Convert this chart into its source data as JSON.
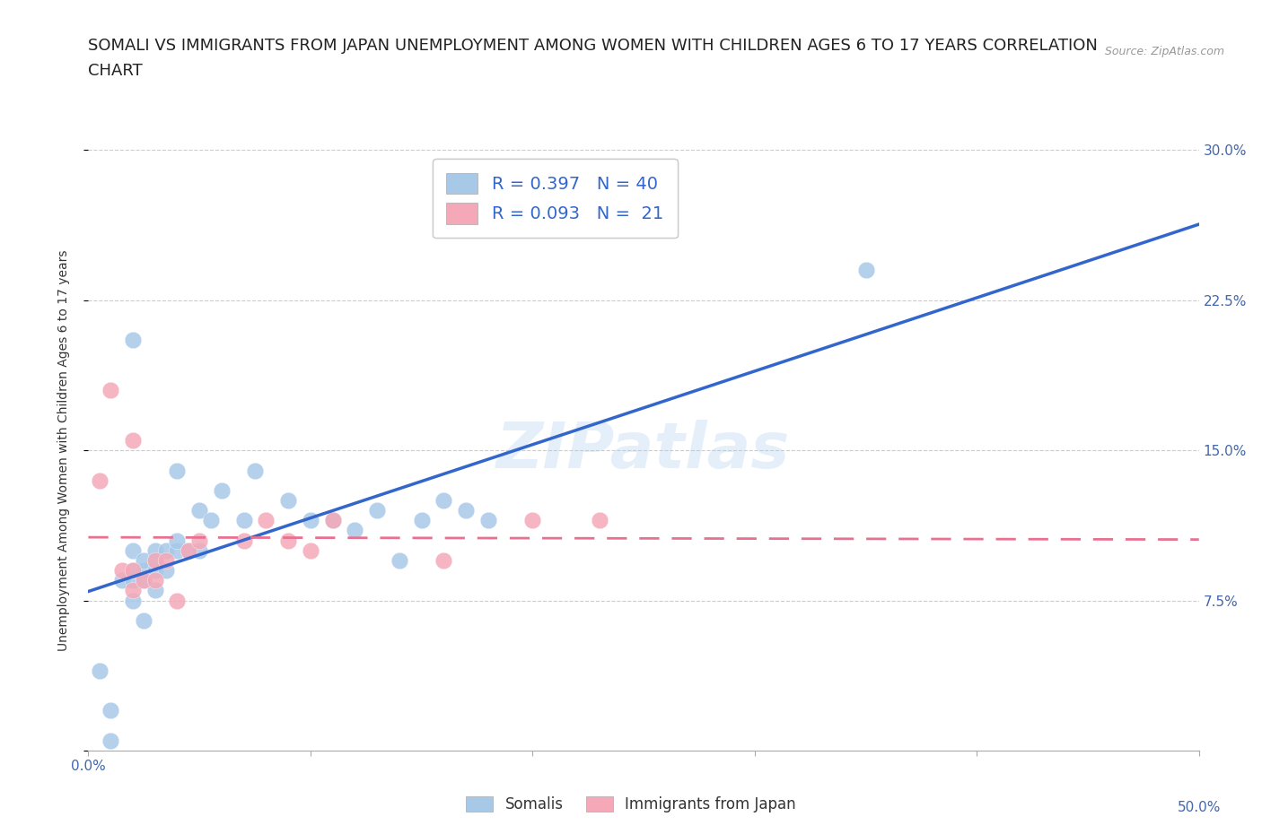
{
  "title_line1": "SOMALI VS IMMIGRANTS FROM JAPAN UNEMPLOYMENT AMONG WOMEN WITH CHILDREN AGES 6 TO 17 YEARS CORRELATION",
  "title_line2": "CHART",
  "source": "Source: ZipAtlas.com",
  "ylabel": "Unemployment Among Women with Children Ages 6 to 17 years",
  "xlim": [
    0.0,
    0.5
  ],
  "ylim": [
    0.0,
    0.3
  ],
  "xticks": [
    0.0,
    0.1,
    0.2,
    0.3,
    0.4,
    0.5
  ],
  "yticks": [
    0.0,
    0.075,
    0.15,
    0.225,
    0.3
  ],
  "somali_color": "#a8c8e8",
  "japan_color": "#f4a8b8",
  "somali_line_color": "#3366cc",
  "japan_line_color": "#e87090",
  "somali_R": 0.397,
  "somali_N": 40,
  "japan_R": 0.093,
  "japan_N": 21,
  "somali_x": [
    0.005,
    0.01,
    0.015,
    0.02,
    0.02,
    0.02,
    0.02,
    0.025,
    0.025,
    0.025,
    0.03,
    0.03,
    0.03,
    0.03,
    0.035,
    0.035,
    0.04,
    0.04,
    0.04,
    0.045,
    0.05,
    0.05,
    0.055,
    0.06,
    0.07,
    0.075,
    0.09,
    0.1,
    0.11,
    0.12,
    0.13,
    0.14,
    0.15,
    0.16,
    0.17,
    0.18,
    0.02,
    0.35,
    0.01,
    0.025
  ],
  "somali_y": [
    0.04,
    0.02,
    0.085,
    0.075,
    0.085,
    0.09,
    0.1,
    0.085,
    0.09,
    0.095,
    0.08,
    0.09,
    0.095,
    0.1,
    0.09,
    0.1,
    0.1,
    0.105,
    0.14,
    0.1,
    0.1,
    0.12,
    0.115,
    0.13,
    0.115,
    0.14,
    0.125,
    0.115,
    0.115,
    0.11,
    0.12,
    0.095,
    0.115,
    0.125,
    0.12,
    0.115,
    0.205,
    0.24,
    0.005,
    0.065
  ],
  "japan_x": [
    0.005,
    0.01,
    0.015,
    0.02,
    0.02,
    0.025,
    0.03,
    0.03,
    0.035,
    0.04,
    0.045,
    0.05,
    0.07,
    0.08,
    0.09,
    0.1,
    0.11,
    0.16,
    0.2,
    0.23,
    0.02
  ],
  "japan_y": [
    0.135,
    0.18,
    0.09,
    0.08,
    0.09,
    0.085,
    0.085,
    0.095,
    0.095,
    0.075,
    0.1,
    0.105,
    0.105,
    0.115,
    0.105,
    0.1,
    0.115,
    0.095,
    0.115,
    0.115,
    0.155
  ],
  "grid_color": "#cccccc",
  "tick_color": "#4466aa",
  "title_fontsize": 13,
  "axis_label_fontsize": 10,
  "tick_fontsize": 11,
  "legend_fontsize": 14,
  "source_fontsize": 9
}
